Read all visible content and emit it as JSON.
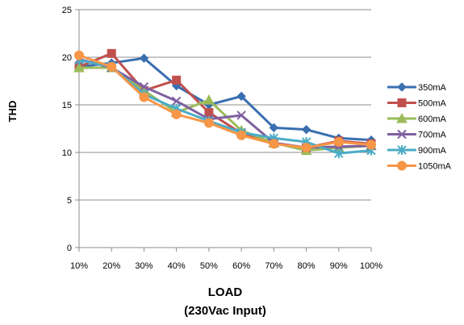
{
  "chart_data": {
    "type": "line",
    "title": "",
    "xlabel": [
      "LOAD",
      "(230Vac Input)"
    ],
    "ylabel": "THD",
    "ylim": [
      0,
      25
    ],
    "yticks": [
      "0",
      "5",
      "10",
      "15",
      "20",
      "25"
    ],
    "categories": [
      "10%",
      "20%",
      "30%",
      "40%",
      "50%",
      "60%",
      "70%",
      "80%",
      "90%",
      "100%"
    ],
    "grid": "horizontal",
    "legend_position": "right",
    "series": [
      {
        "name": "350mA",
        "color": "#3a6fb0",
        "marker": "diamond",
        "values": [
          19.0,
          19.4,
          19.9,
          17.0,
          15.0,
          15.9,
          12.6,
          12.4,
          11.5,
          11.3
        ]
      },
      {
        "name": "500mA",
        "color": "#c0504d",
        "marker": "square",
        "values": [
          19.0,
          20.4,
          16.5,
          17.6,
          14.2,
          12.0,
          11.0,
          10.5,
          11.2,
          10.9
        ]
      },
      {
        "name": "600mA",
        "color": "#9bbb59",
        "marker": "triangle",
        "values": [
          18.9,
          18.9,
          16.5,
          14.2,
          15.5,
          12.3,
          11.0,
          10.2,
          10.5,
          10.7
        ]
      },
      {
        "name": "700mA",
        "color": "#7f60a0",
        "marker": "x",
        "values": [
          19.8,
          18.9,
          16.9,
          15.4,
          13.5,
          13.9,
          11.0,
          10.5,
          10.6,
          10.7
        ]
      },
      {
        "name": "900mA",
        "color": "#4bacc6",
        "marker": "star",
        "values": [
          19.7,
          19.0,
          16.1,
          14.6,
          13.3,
          12.1,
          11.5,
          11.1,
          9.9,
          10.2
        ]
      },
      {
        "name": "1050mA",
        "color": "#f79646",
        "marker": "circle",
        "values": [
          20.2,
          19.0,
          15.8,
          14.0,
          13.1,
          11.8,
          10.9,
          10.5,
          11.1,
          10.8
        ]
      }
    ]
  }
}
